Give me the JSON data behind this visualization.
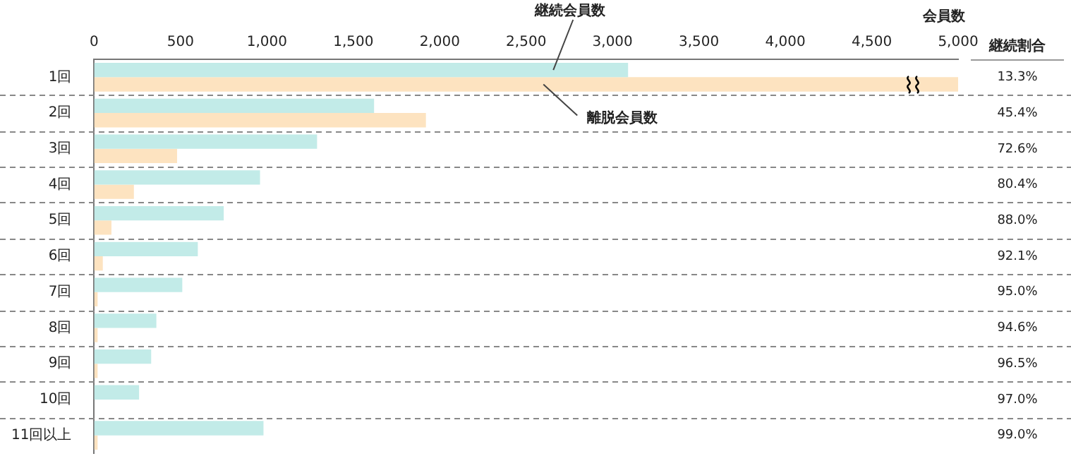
{
  "chart_data": {
    "type": "bar",
    "orientation": "horizontal",
    "xlabel": "会員数",
    "categories": [
      "1回",
      "2回",
      "3回",
      "4回",
      "5回",
      "6回",
      "7回",
      "8回",
      "9回",
      "10回",
      "11回以上"
    ],
    "series": [
      {
        "name": "継続会員数",
        "color": "#c2ebe8",
        "values": [
          3090,
          1620,
          1290,
          960,
          750,
          600,
          510,
          360,
          330,
          260,
          980
        ]
      },
      {
        "name": "離脱会員数",
        "color": "#fde3c0",
        "values": [
          5000,
          1920,
          480,
          230,
          100,
          50,
          20,
          20,
          20,
          0,
          20
        ]
      }
    ],
    "xlim": [
      0,
      5000
    ],
    "xticks": [
      {
        "value": 0,
        "label": "0"
      },
      {
        "value": 500,
        "label": "500"
      },
      {
        "value": 1000,
        "label": "1,000"
      },
      {
        "value": 1500,
        "label": "1,500"
      },
      {
        "value": 2000,
        "label": "2,000"
      },
      {
        "value": 2500,
        "label": "2,500"
      },
      {
        "value": 3000,
        "label": "3,000"
      },
      {
        "value": 3500,
        "label": "3,500"
      },
      {
        "value": 4000,
        "label": "4,000"
      },
      {
        "value": 4500,
        "label": "4,500"
      },
      {
        "value": 5000,
        "label": "5,000"
      }
    ],
    "grid": "y",
    "legend": false,
    "annotations": [
      "継続割合",
      "13.3%",
      "45.4%",
      "72.6%",
      "80.4%",
      "88.0%",
      "92.1%",
      "95.0%",
      "94.6%",
      "96.5%",
      "97.0%",
      "99.0%"
    ]
  }
}
